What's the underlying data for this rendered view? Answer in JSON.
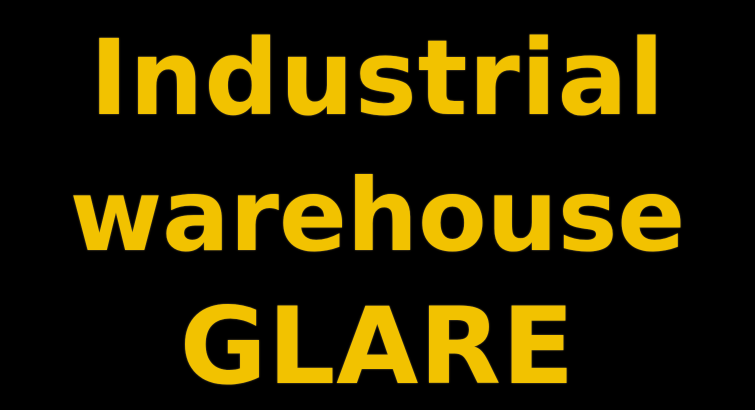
{
  "text": {
    "line1": "Industrial",
    "line2": "warehouse",
    "line3": "GLARE"
  },
  "colors": {
    "background": "#000000",
    "text": "#F2C200"
  }
}
